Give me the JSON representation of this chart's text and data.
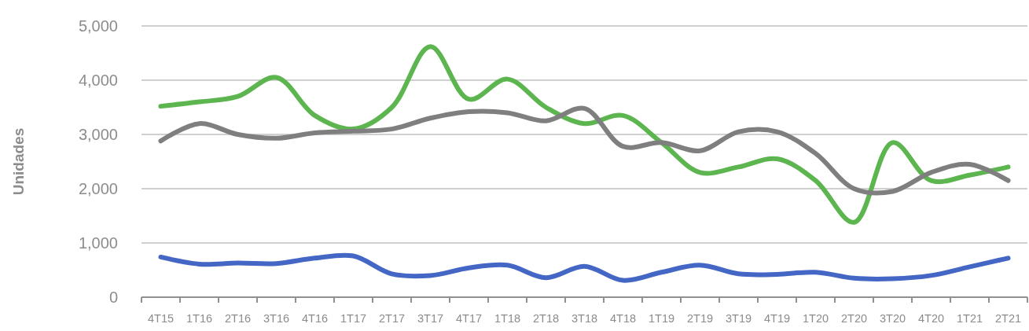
{
  "chart_data": {
    "type": "line",
    "ylabel": "Unidades",
    "categories": [
      "4T15",
      "1T16",
      "2T16",
      "3T16",
      "4T16",
      "1T17",
      "2T17",
      "3T17",
      "4T17",
      "1T18",
      "2T18",
      "3T18",
      "4T18",
      "1T19",
      "2T19",
      "3T19",
      "4T19",
      "1T20",
      "2T20",
      "3T20",
      "4T20",
      "1T21",
      "2T21"
    ],
    "series": [
      {
        "color": "#5cb54f",
        "values": [
          3520,
          3600,
          3700,
          4050,
          3350,
          3100,
          3500,
          4620,
          3650,
          4020,
          3500,
          3200,
          3350,
          2850,
          2300,
          2400,
          2550,
          2150,
          1380,
          2850,
          2150,
          2250,
          2400
        ]
      },
      {
        "color": "#7f7f7f",
        "values": [
          2880,
          3200,
          3000,
          2930,
          3030,
          3060,
          3100,
          3300,
          3420,
          3400,
          3250,
          3480,
          2780,
          2850,
          2700,
          3050,
          3050,
          2650,
          2000,
          1950,
          2300,
          2450,
          2150
        ]
      },
      {
        "color": "#4466c4",
        "values": [
          740,
          610,
          630,
          620,
          720,
          760,
          430,
          400,
          540,
          590,
          360,
          570,
          310,
          460,
          590,
          430,
          420,
          460,
          350,
          340,
          400,
          560,
          720
        ]
      }
    ],
    "ylim": [
      0,
      5000
    ],
    "yticks": [
      {
        "value": 0,
        "label": "0"
      },
      {
        "value": 1000,
        "label": "1,000"
      },
      {
        "value": 2000,
        "label": "2,000"
      },
      {
        "value": 3000,
        "label": "3,000"
      },
      {
        "value": 4000,
        "label": "4,000"
      },
      {
        "value": 5000,
        "label": "5,000"
      }
    ],
    "grid": "y",
    "marker": "none",
    "line_style": "solid"
  }
}
